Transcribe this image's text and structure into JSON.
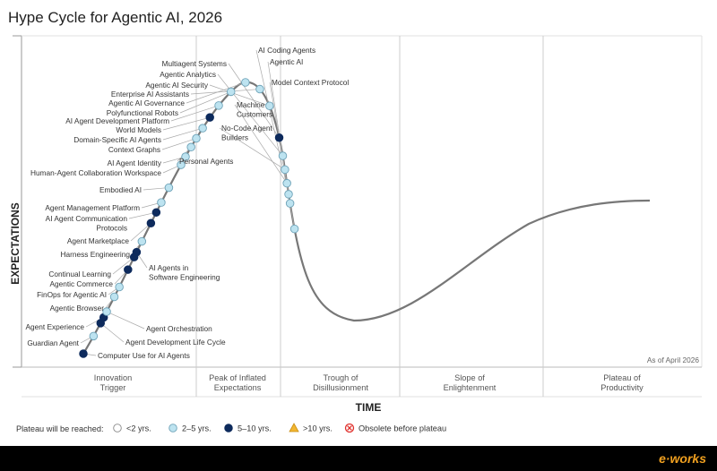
{
  "chart_data": {
    "type": "hype_cycle",
    "title": "Hype Cycle for Agentic AI, 2026",
    "xlabel": "TIME",
    "ylabel": "EXPECTATIONS",
    "as_of": "As of April 2026",
    "phases": [
      "Innovation Trigger",
      "Peak of Inflated Expectations",
      "Trough of Disillusionment",
      "Slope of Enlightenment",
      "Plateau of Productivity"
    ],
    "legend_title": "Plateau will be reached:",
    "legend": [
      {
        "key": "lt2",
        "label": "<2 yrs.",
        "color": "#ffffff"
      },
      {
        "key": "2to5",
        "label": "2–5 yrs.",
        "color": "#bde3f0"
      },
      {
        "key": "5to10",
        "label": "5–10 yrs.",
        "color": "#0d2a5c"
      },
      {
        "key": "gt10",
        "label": ">10 yrs.",
        "color": "#f2b631"
      },
      {
        "key": "obsolete",
        "label": "Obsolete before plateau",
        "color": "#e0302c"
      }
    ],
    "points": [
      {
        "name": "Computer Use for AI Agents",
        "t": 0.0,
        "cat": "5to10"
      },
      {
        "name": "Guardian Agent",
        "t": 0.022,
        "cat": "2to5"
      },
      {
        "name": "Agent Development Life Cycle",
        "t": 0.038,
        "cat": "5to10"
      },
      {
        "name": "Agent Experience",
        "t": 0.045,
        "cat": "5to10"
      },
      {
        "name": "Agent Orchestration",
        "t": 0.052,
        "cat": "2to5"
      },
      {
        "name": "Agentic Browser",
        "t": 0.07,
        "cat": "2to5"
      },
      {
        "name": "FinOps for Agentic AI",
        "t": 0.082,
        "cat": "2to5"
      },
      {
        "name": "Agentic Commerce",
        "t": 0.103,
        "cat": "5to10"
      },
      {
        "name": "Continual Learning",
        "t": 0.118,
        "cat": "5to10"
      },
      {
        "name": "AI Agents in Software Engineering",
        "t": 0.124,
        "cat": "5to10"
      },
      {
        "name": "Harness Engineering",
        "t": 0.137,
        "cat": "2to5"
      },
      {
        "name": "Agent Marketplace",
        "t": 0.159,
        "cat": "5to10"
      },
      {
        "name": "AI Agent Communication Protocols",
        "t": 0.172,
        "cat": "5to10"
      },
      {
        "name": "Agent Management Platform",
        "t": 0.184,
        "cat": "2to5"
      },
      {
        "name": "Embodied AI",
        "t": 0.202,
        "cat": "2to5"
      },
      {
        "name": "Human-Agent Collaboration Workspace",
        "t": 0.23,
        "cat": "2to5"
      },
      {
        "name": "AI Agent Identity",
        "t": 0.24,
        "cat": "2to5"
      },
      {
        "name": "Personal Agents",
        "t": 0.252,
        "cat": "2to5"
      },
      {
        "name": "Context Graphs",
        "t": 0.263,
        "cat": "2to5"
      },
      {
        "name": "Domain-Specific AI Agents",
        "t": 0.276,
        "cat": "2to5"
      },
      {
        "name": "World Models",
        "t": 0.29,
        "cat": "5to10"
      },
      {
        "name": "AI Agent Development Platform",
        "t": 0.306,
        "cat": "2to5"
      },
      {
        "name": "Polyfunctional Robots",
        "t": 0.326,
        "cat": "2to5"
      },
      {
        "name": "Agentic AI Governance",
        "t": 0.345,
        "cat": "2to5"
      },
      {
        "name": "Enterprise AI Assistants",
        "t": 0.363,
        "cat": "2to5"
      },
      {
        "name": "Agentic AI Security",
        "t": 0.384,
        "cat": "2to5"
      },
      {
        "name": "Multiagent Systems",
        "t": 0.42,
        "cat": "5to10"
      },
      {
        "name": "Agentic Analytics",
        "t": 0.44,
        "cat": "2to5"
      },
      {
        "name": "No-Code Agent Builders",
        "t": 0.455,
        "cat": "2to5"
      },
      {
        "name": "Machine Customers",
        "t": 0.47,
        "cat": "2to5"
      },
      {
        "name": "AI Coding Agents",
        "t": 0.482,
        "cat": "2to5"
      },
      {
        "name": "Agentic AI",
        "t": 0.492,
        "cat": "2to5"
      },
      {
        "name": "Model Context Protocol",
        "t": 0.52,
        "cat": "2to5"
      }
    ]
  }
}
